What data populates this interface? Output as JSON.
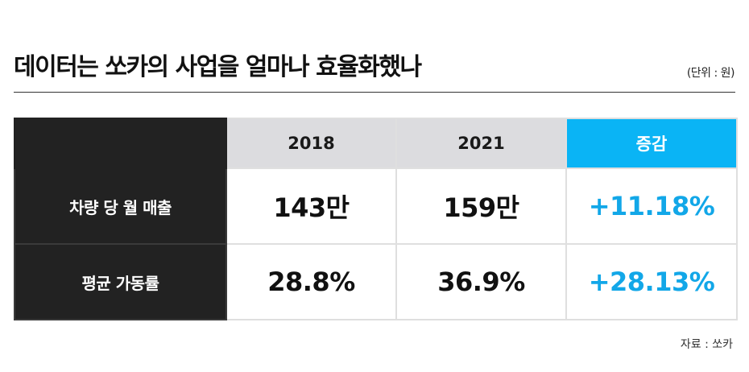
{
  "title": "데이터는 쏘카의 사업을 얼마나 효율화했나",
  "unit": "(단위 : 원)",
  "source": "자료 : 쏘카",
  "colors": {
    "header_dark": "#222222",
    "header_gray": "#dcdcdf",
    "accent": "#0ab4f5",
    "change_text": "#12a7e8"
  },
  "chart_data": {
    "type": "table",
    "columns": [
      "2018",
      "2021",
      "증감"
    ],
    "rows": [
      {
        "label": "차량 당 월 매출",
        "values": [
          "143만",
          "159만",
          "+11.18%"
        ]
      },
      {
        "label": "평균 가동률",
        "values": [
          "28.8%",
          "36.9%",
          "+28.13%"
        ]
      }
    ]
  }
}
